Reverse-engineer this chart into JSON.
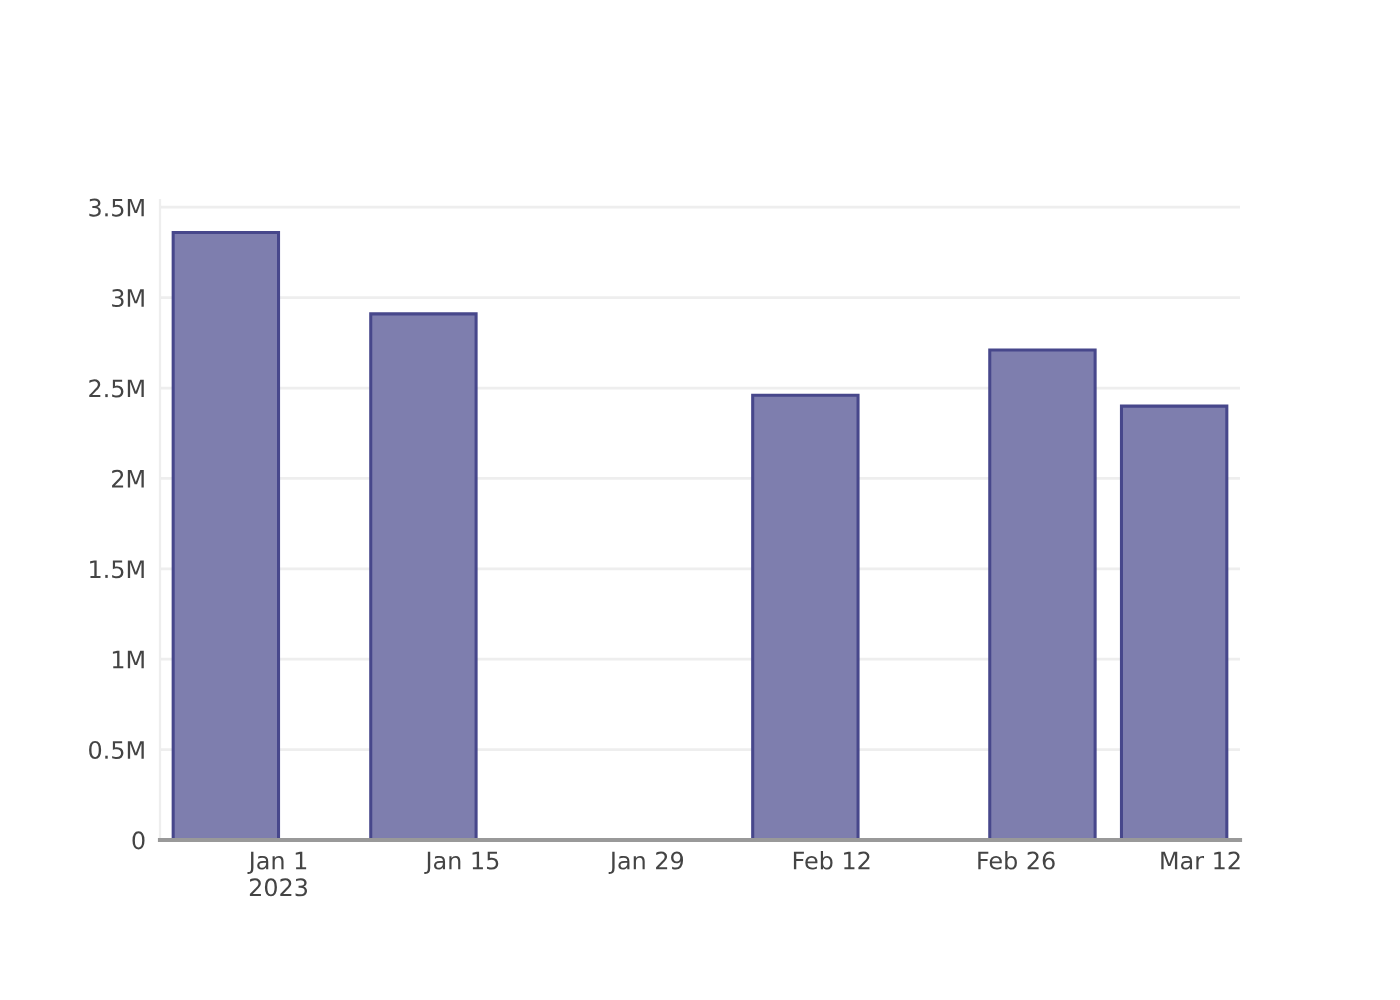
{
  "chart_data": {
    "type": "bar",
    "x": [
      "2022-12-28",
      "2023-01-12",
      "2023-02-10",
      "2023-02-28",
      "2023-03-10"
    ],
    "values": [
      3360000,
      2910000,
      2460000,
      2710000,
      2400000
    ],
    "color": "#7e7eae",
    "xlim": [
      "2022-12-23",
      "2023-03-15"
    ],
    "xticks": [
      {
        "value": "2023-01-01",
        "label": "Jan 1\n2023"
      },
      {
        "value": "2023-01-15",
        "label": "Jan 15"
      },
      {
        "value": "2023-01-29",
        "label": "Jan 29"
      },
      {
        "value": "2023-02-12",
        "label": "Feb 12"
      },
      {
        "value": "2023-02-26",
        "label": "Feb 26"
      },
      {
        "value": "2023-03-12",
        "label": "Mar 12"
      }
    ],
    "ylim": [
      0,
      3540000
    ],
    "yticks": [
      0,
      {
        "value": 500000,
        "label": "0.5M"
      },
      {
        "value": 1000000,
        "label": "1M"
      },
      {
        "value": 1500000,
        "label": "1.5M"
      },
      {
        "value": 2000000,
        "label": "2M"
      },
      {
        "value": 2500000,
        "label": "2.5M"
      },
      {
        "value": 3000000,
        "label": "3M"
      },
      {
        "value": 3500000,
        "label": "3.5M"
      }
    ],
    "grid": "y"
  }
}
